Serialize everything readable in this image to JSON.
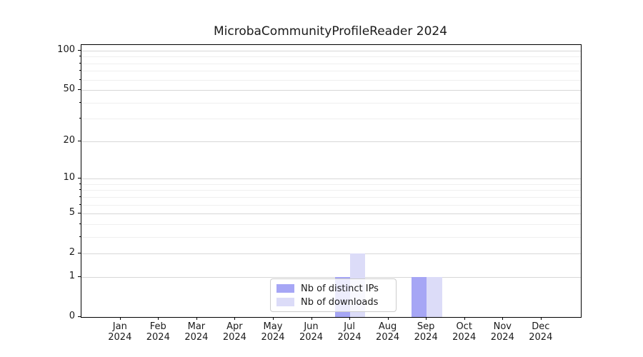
{
  "chart_data": {
    "type": "bar",
    "title": "MicrobaCommunityProfileReader 2024",
    "categories": [
      "Jan 2024",
      "Feb 2024",
      "Mar 2024",
      "Apr 2024",
      "May 2024",
      "Jun 2024",
      "Jul 2024",
      "Aug 2024",
      "Sep 2024",
      "Oct 2024",
      "Nov 2024",
      "Dec 2024"
    ],
    "series": [
      {
        "name": "Nb of distinct IPs",
        "color": "#a6a6f5",
        "values": [
          0,
          0,
          0,
          0,
          0,
          0,
          1,
          0,
          1,
          0,
          0,
          0
        ]
      },
      {
        "name": "Nb of downloads",
        "color": "#dcdcf8",
        "values": [
          0,
          0,
          0,
          0,
          0,
          0,
          2,
          0,
          1,
          0,
          0,
          0
        ]
      }
    ],
    "xlabel": "",
    "ylabel": "",
    "yscale": "log1p",
    "ylim": [
      0,
      110.4
    ],
    "y_major_ticks": [
      0,
      1,
      2,
      5,
      10,
      20,
      50,
      100
    ],
    "y_minor_ticks": [
      3,
      4,
      6,
      7,
      8,
      9,
      30,
      40,
      60,
      70,
      80,
      90
    ],
    "grid": "both",
    "legend_position": "lower center"
  },
  "colors": {
    "grid_major": "#d7d7d7",
    "grid_minor": "#efefef",
    "spine": "#000000",
    "text": "#1a1a1a",
    "legend_border": "#cccccc"
  }
}
